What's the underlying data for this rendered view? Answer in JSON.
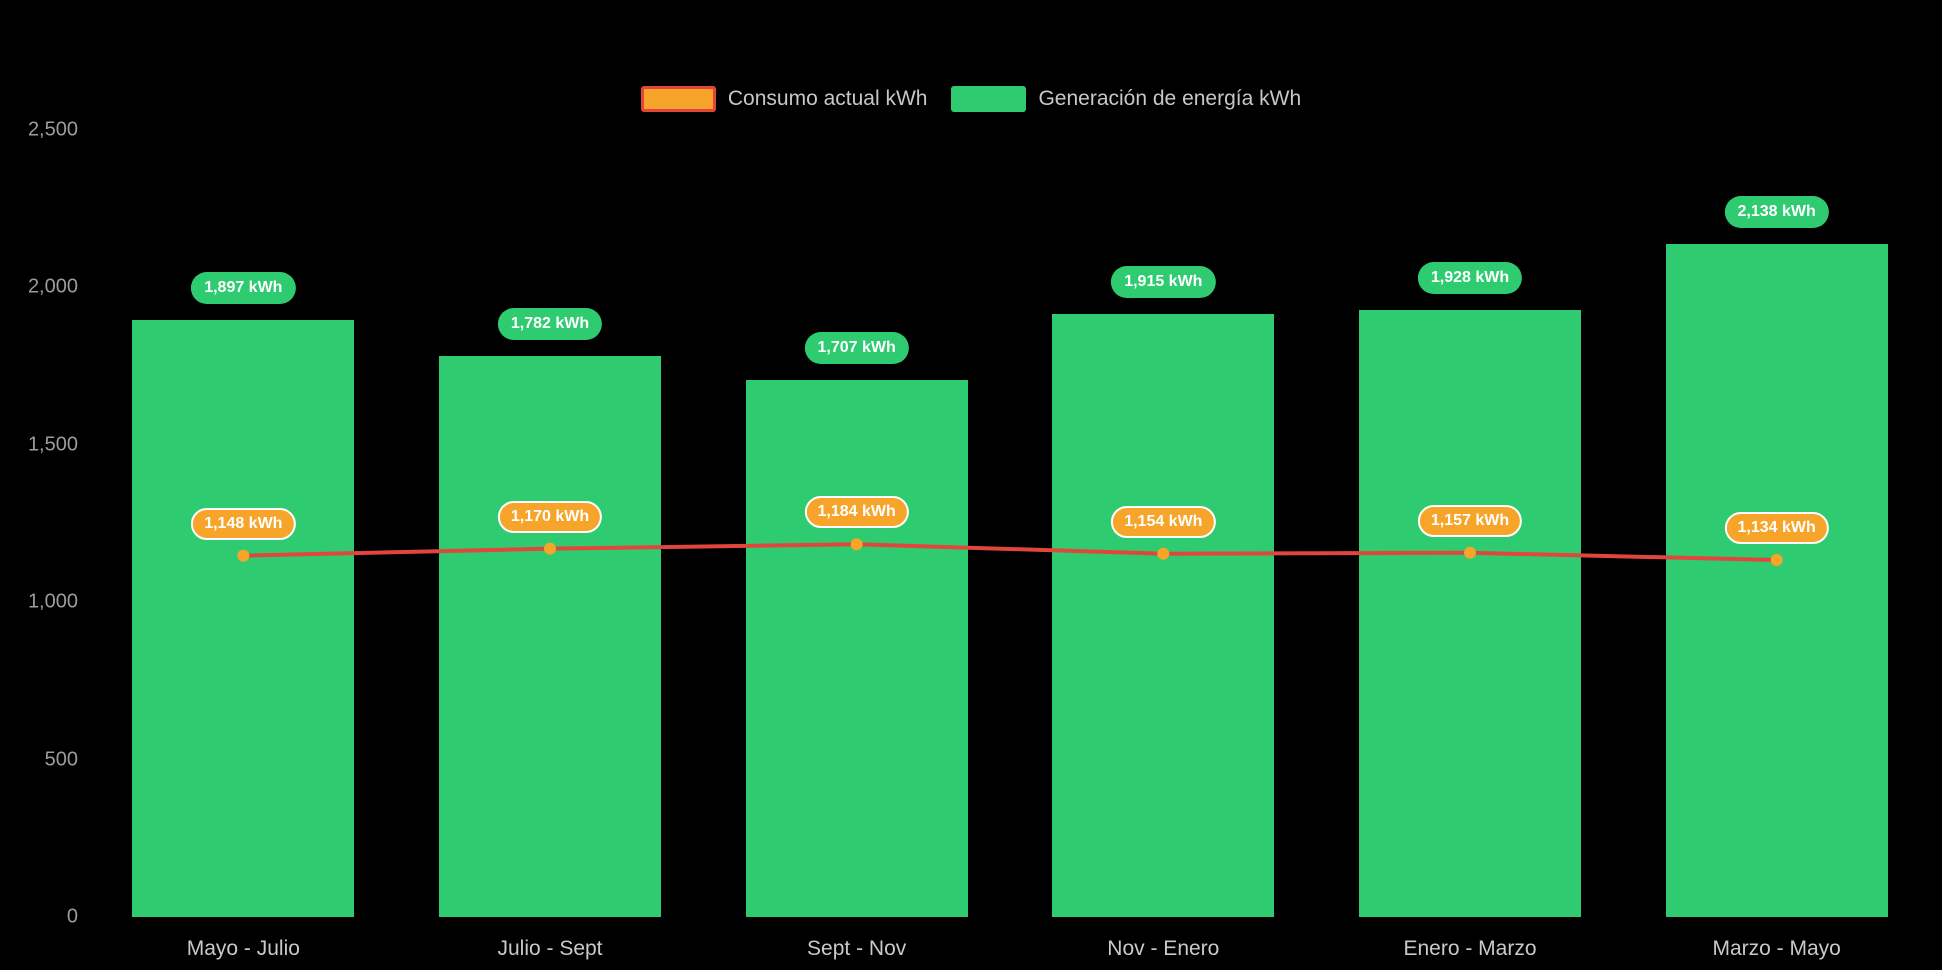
{
  "chart_data": {
    "type": "bar",
    "subtype": "bar+line combo",
    "background": "#000000",
    "categories": [
      "Mayo - Julio",
      "Julio - Sept",
      "Sept - Nov",
      "Nov - Enero",
      "Enero - Marzo",
      "Marzo - Mayo"
    ],
    "series": [
      {
        "name": "Consumo actual kWh",
        "type": "line",
        "values": [
          1148,
          1170,
          1184,
          1154,
          1157,
          1134
        ],
        "labels": [
          "1,148 kWh",
          "1,170 kWh",
          "1,184 kWh",
          "1,154 kWh",
          "1,157 kWh",
          "1,134 kWh"
        ],
        "color": "#e2453c",
        "marker_color": "#f6a52a"
      },
      {
        "name": "Generación de energía kWh",
        "type": "bar",
        "values": [
          1897,
          1782,
          1707,
          1915,
          1928,
          2138
        ],
        "labels": [
          "1,897 kWh",
          "1,782 kWh",
          "1,707 kWh",
          "1,915 kWh",
          "1,928 kWh",
          "2,138 kWh"
        ],
        "color": "#2ecb71"
      }
    ],
    "y_ticks": [
      "0",
      "500",
      "1,000",
      "1,500",
      "2,000",
      "2,500"
    ],
    "ylim": [
      0,
      2500
    ],
    "grid": false,
    "legend_position": "top-center",
    "label_unit": "kWh"
  }
}
